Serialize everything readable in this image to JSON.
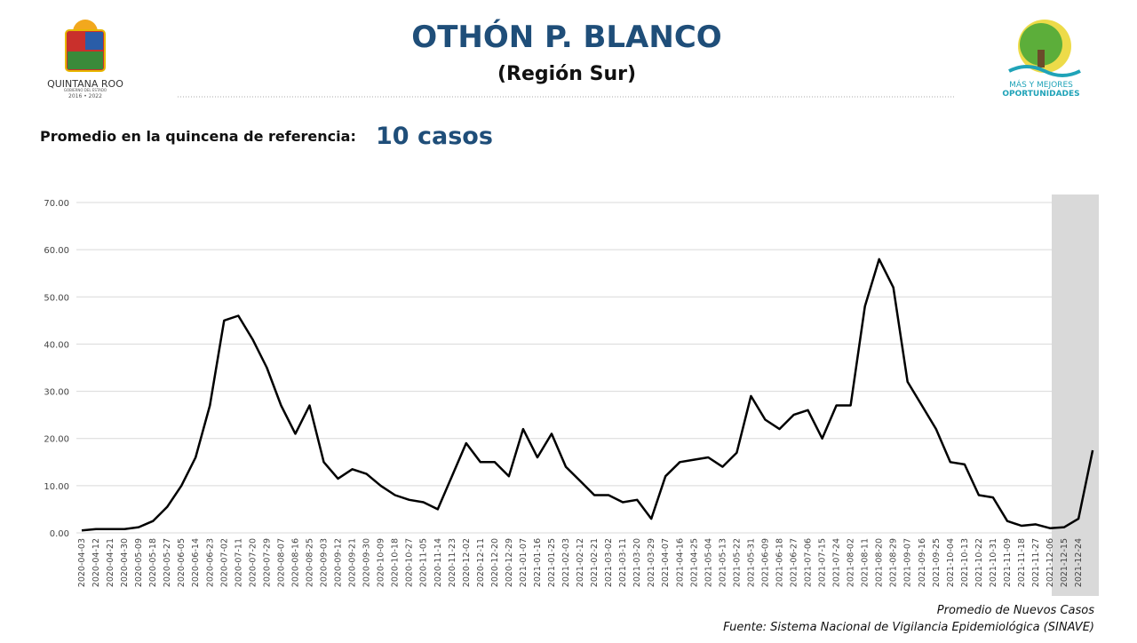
{
  "header": {
    "title": "OTHÓN P. BLANCO",
    "subtitle": "(Región Sur)",
    "state_logo": {
      "name": "QUINTANA ROO",
      "line": "GOBIERNO DEL ESTADO",
      "years": "2016 • 2022"
    },
    "slogan_logo": {
      "line1": "MÁS Y MEJORES",
      "line2": "OPORTUNIDADES"
    },
    "reference_label": "Promedio en la quincena de referencia:",
    "reference_value": "10 casos"
  },
  "chart_data": {
    "type": "line",
    "x": [
      "2020-04-03",
      "2020-04-12",
      "2020-04-21",
      "2020-04-30",
      "2020-05-09",
      "2020-05-18",
      "2020-05-27",
      "2020-06-05",
      "2020-06-14",
      "2020-06-23",
      "2020-07-02",
      "2020-07-11",
      "2020-07-20",
      "2020-07-29",
      "2020-08-07",
      "2020-08-16",
      "2020-08-25",
      "2020-09-03",
      "2020-09-12",
      "2020-09-21",
      "2020-09-30",
      "2020-10-09",
      "2020-10-18",
      "2020-10-27",
      "2020-11-05",
      "2020-11-14",
      "2020-11-23",
      "2020-12-02",
      "2020-12-11",
      "2020-12-20",
      "2020-12-29",
      "2021-01-07",
      "2021-01-16",
      "2021-01-25",
      "2021-02-03",
      "2021-02-12",
      "2021-02-21",
      "2021-03-02",
      "2021-03-11",
      "2021-03-20",
      "2021-03-29",
      "2021-04-07",
      "2021-04-16",
      "2021-04-25",
      "2021-05-04",
      "2021-05-13",
      "2021-05-22",
      "2021-05-31",
      "2021-06-09",
      "2021-06-18",
      "2021-06-27",
      "2021-07-06",
      "2021-07-15",
      "2021-07-24",
      "2021-08-02",
      "2021-08-11",
      "2021-08-20",
      "2021-08-29",
      "2021-09-07",
      "2021-09-16",
      "2021-09-25",
      "2021-10-04",
      "2021-10-13",
      "2021-10-22",
      "2021-10-31",
      "2021-11-09",
      "2021-11-18",
      "2021-11-27",
      "2021-12-06",
      "2021-12-15",
      "2021-12-24",
      null
    ],
    "series": [
      {
        "name": "Promedio de Nuevos Casos",
        "color": "#000000",
        "values": [
          0.5,
          0.8,
          0.8,
          0.8,
          1.2,
          2.5,
          5.5,
          10,
          16,
          27,
          45,
          46,
          41,
          35,
          27,
          21,
          27,
          15,
          11.5,
          13.5,
          12.5,
          10,
          8,
          7,
          6.5,
          5,
          12,
          19,
          15,
          15,
          12,
          22,
          16,
          21,
          14,
          11,
          8,
          8,
          6.5,
          7,
          3,
          12,
          15,
          15.5,
          16,
          14,
          17,
          29,
          24,
          22,
          25,
          26,
          20,
          27,
          27,
          48,
          58,
          52,
          32,
          27,
          22,
          15,
          14.5,
          8,
          7.5,
          2.5,
          1.5,
          1.8,
          1,
          1.2,
          3,
          17.5
        ]
      }
    ],
    "ylim": [
      0,
      70
    ],
    "yticks": [
      {
        "value": 0,
        "label": "0.00"
      },
      {
        "value": 10,
        "label": "10.00"
      },
      {
        "value": 20,
        "label": "20.00"
      },
      {
        "value": 30,
        "label": "30.00"
      },
      {
        "value": 40,
        "label": "40.00"
      },
      {
        "value": 50,
        "label": "50.00"
      },
      {
        "value": 60,
        "label": "60.00"
      },
      {
        "value": 70,
        "label": "70.00"
      }
    ],
    "grid": true
  },
  "footer": {
    "caption": "Promedio de Nuevos Casos",
    "source": "Fuente: Sistema Nacional de Vigilancia Epidemiológica (SINAVE)"
  }
}
